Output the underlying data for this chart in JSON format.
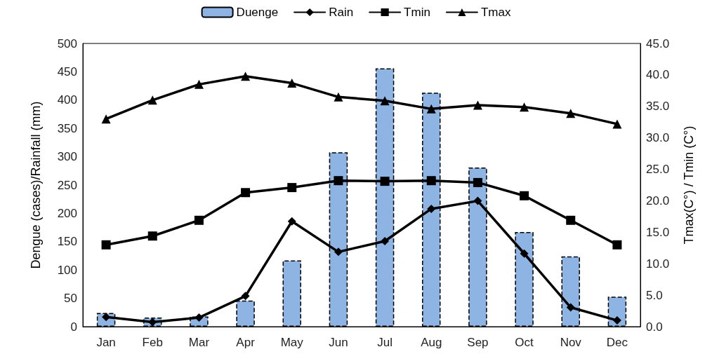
{
  "chart_data": {
    "type": "bar",
    "categories": [
      "Jan",
      "Feb",
      "Mar",
      "Apr",
      "May",
      "Jun",
      "Jul",
      "Aug",
      "Sep",
      "Oct",
      "Nov",
      "Dec"
    ],
    "ylabel": "Dengue (cases)/Rainfall (mm)",
    "y2label": "Tmax(C°) / Tmin (C°)",
    "series": [
      {
        "name": "Duenge",
        "color": "#8eb4e3",
        "values": [
          24,
          16,
          18,
          46,
          117,
          308,
          456,
          413,
          281,
          167,
          124,
          53
        ]
      },
      {
        "name": "Rain",
        "type": "line",
        "marker": "diamond",
        "color": "#000000",
        "values": [
          17,
          8,
          16,
          54,
          186,
          132,
          151,
          208,
          222,
          129,
          34,
          11
        ]
      },
      {
        "name": "Tmin",
        "type": "line",
        "marker": "square",
        "axis": "y2",
        "color": "#000000",
        "values": [
          13.0,
          14.4,
          16.9,
          21.3,
          22.1,
          23.2,
          23.1,
          23.2,
          22.9,
          20.8,
          16.9,
          13.0
        ]
      },
      {
        "name": "Tmax",
        "type": "line",
        "marker": "triangle",
        "axis": "y2",
        "color": "#000000",
        "values": [
          33.0,
          36.0,
          38.5,
          39.8,
          38.7,
          36.5,
          35.9,
          34.6,
          35.2,
          34.9,
          33.9,
          32.2
        ]
      }
    ],
    "ylim": [
      0,
      500
    ],
    "yticks": [
      0,
      50,
      100,
      150,
      200,
      250,
      300,
      350,
      400,
      450,
      500
    ],
    "y2lim": [
      0,
      45
    ],
    "y2ticks": [
      {
        "value": 0,
        "label": "0.0"
      },
      {
        "value": 5,
        "label": "5.0"
      },
      {
        "value": 10,
        "label": "10.0"
      },
      {
        "value": 15,
        "label": "15.0"
      },
      {
        "value": 20,
        "label": "20.0"
      },
      {
        "value": 25,
        "label": "25.0"
      },
      {
        "value": 30,
        "label": "30.0"
      },
      {
        "value": 35,
        "label": "35.0"
      },
      {
        "value": 40,
        "label": "40.0"
      },
      {
        "value": 45,
        "label": "45.0"
      }
    ],
    "grid": false,
    "legend": "top",
    "line_style": "solid"
  }
}
